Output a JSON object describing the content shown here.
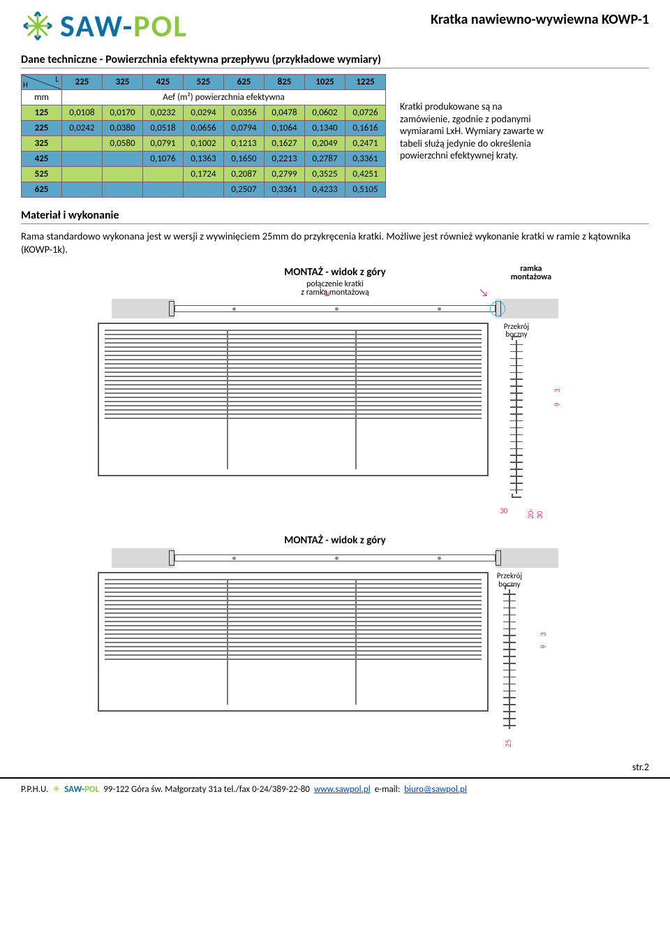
{
  "header": {
    "logo_saw": "SAW",
    "logo_dash": "-",
    "logo_pol": "POL",
    "title": "Kratka nawiewno-wywiewna KOWP-1"
  },
  "section1_title": "Dane techniczne - Powierzchnia efektywna przepływu (przykładowe wymiary)",
  "table": {
    "corner_h": "H",
    "corner_l": "L",
    "unit_row_label": "mm",
    "unit_row_text": "Aef (m²) powierzchnia efektywna",
    "col_headers": [
      "225",
      "325",
      "425",
      "525",
      "625",
      "825",
      "1025",
      "1225"
    ],
    "rows": [
      {
        "label": "125",
        "cells": [
          "0,0108",
          "0,0170",
          "0,0232",
          "0,0294",
          "0,0356",
          "0,0478",
          "0,0602",
          "0,0726"
        ],
        "style": "green"
      },
      {
        "label": "225",
        "cells": [
          "0,0242",
          "0,0380",
          "0,0518",
          "0,0656",
          "0,0794",
          "0,1064",
          "0,1340",
          "0,1616"
        ],
        "style": "blue"
      },
      {
        "label": "325",
        "cells": [
          "",
          "0,0580",
          "0,0791",
          "0,1002",
          "0,1213",
          "0,1627",
          "0,2049",
          "0,2471"
        ],
        "style": "green"
      },
      {
        "label": "425",
        "cells": [
          "",
          "",
          "0,1076",
          "0,1363",
          "0,1650",
          "0,2213",
          "0,2787",
          "0,3361"
        ],
        "style": "blue"
      },
      {
        "label": "525",
        "cells": [
          "",
          "",
          "",
          "0,1724",
          "0,2087",
          "0,2799",
          "0,3525",
          "0,4251"
        ],
        "style": "green"
      },
      {
        "label": "625",
        "cells": [
          "",
          "",
          "",
          "",
          "0,2507",
          "0,3361",
          "0,4233",
          "0,5105"
        ],
        "style": "blue"
      }
    ],
    "colors": {
      "header_bg": "#5aa6c8",
      "green_bg": "#b5d96b"
    }
  },
  "side_note": "Kratki produkowane są na zamówienie, zgodnie z podanymi wymiarami LxH. Wymiary zawarte w tabeli służą jedynie do określenia powierzchni efektywnej kraty.",
  "section2_title": "Materiał i wykonanie",
  "body_text": "Rama standardowo wykonana jest w wersji z wywinięciem 25mm do przykręcenia kratki. Możliwe jest również wykonanie kratki w ramie z kątownika (KOWP-1k).",
  "diagram1": {
    "title": "MONTAŻ - widok z góry",
    "ramka_label": "ramka\nmontażowa",
    "pol_label": "połączenie kratki\nz ramką montażową",
    "side_label": "Przekrój\nboczny",
    "slat_count": 22,
    "dim_9": "9",
    "dim_3": "3",
    "dim_30": "30",
    "dim_20_30": "20-30"
  },
  "diagram2": {
    "title": "MONTAŻ - widok z góry",
    "side_label": "Przekrój\nboczny",
    "slat_count": 20,
    "dim_9": "9",
    "dim_3": "3",
    "dim_25": "25"
  },
  "page_no": "str.2",
  "footer": {
    "pphu": "P.P.H.U.",
    "star": "✳",
    "logo_saw": "SAW",
    "logo_dash": "-",
    "logo_pol": "POL",
    "address": "99-122 Góra św. Małgorzaty 31a  tel./fax 0-24/389-22-80",
    "url": "www.sawpol.pl",
    "email_label": "e-mail:",
    "email": "biuro@sawpol.pl"
  }
}
